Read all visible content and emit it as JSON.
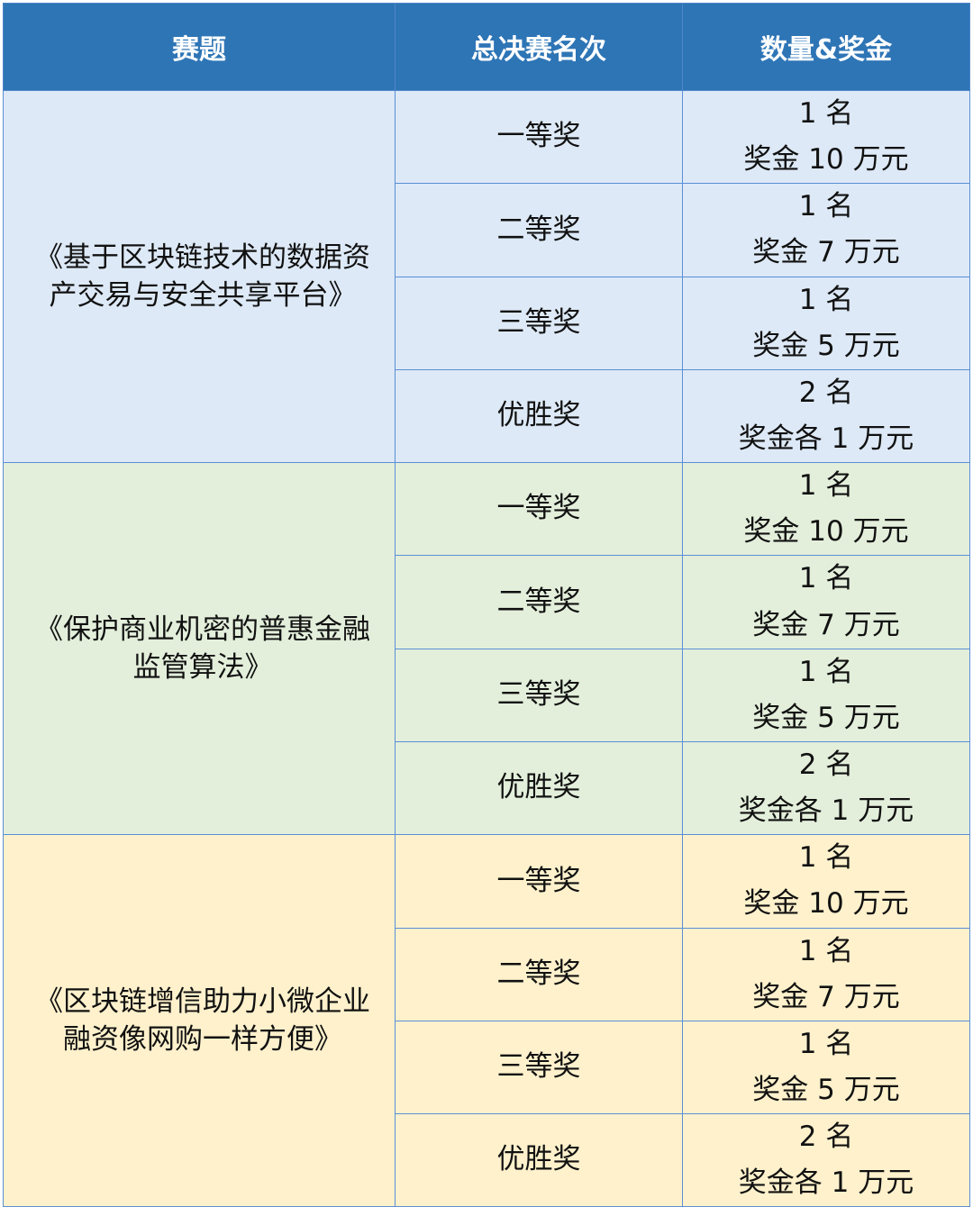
{
  "header": {
    "col_topic": "赛题",
    "col_rank": "总决赛名次",
    "col_amount": "数量&奖金"
  },
  "groups": [
    {
      "topic": "《基于区块链技术的数据资产交易与安全共享平台》",
      "bg_color": "#dde9f6",
      "prizes": [
        {
          "rank": "一等奖",
          "count": "1 名",
          "bonus": "奖金 10 万元"
        },
        {
          "rank": "二等奖",
          "count": "1 名",
          "bonus": "奖金 7 万元"
        },
        {
          "rank": "三等奖",
          "count": "1 名",
          "bonus": "奖金 5 万元"
        },
        {
          "rank": "优胜奖",
          "count": "2 名",
          "bonus": "奖金各 1 万元"
        }
      ]
    },
    {
      "topic": "《保护商业机密的普惠金融监管算法》",
      "bg_color": "#e3efdb",
      "prizes": [
        {
          "rank": "一等奖",
          "count": "1 名",
          "bonus": "奖金 10 万元"
        },
        {
          "rank": "二等奖",
          "count": "1 名",
          "bonus": "奖金 7 万元"
        },
        {
          "rank": "三等奖",
          "count": "1 名",
          "bonus": "奖金 5 万元"
        },
        {
          "rank": "优胜奖",
          "count": "2 名",
          "bonus": "奖金各 1 万元"
        }
      ]
    },
    {
      "topic": "《区块链增信助力小微企业融资像网购一样方便》",
      "bg_color": "#fef1cc",
      "prizes": [
        {
          "rank": "一等奖",
          "count": "1 名",
          "bonus": "奖金 10 万元"
        },
        {
          "rank": "二等奖",
          "count": "1 名",
          "bonus": "奖金 7 万元"
        },
        {
          "rank": "三等奖",
          "count": "1 名",
          "bonus": "奖金 5 万元"
        },
        {
          "rank": "优胜奖",
          "count": "2 名",
          "bonus": "奖金各 1 万元"
        }
      ]
    }
  ],
  "colors": {
    "header_bg": "#2e75b6",
    "header_text": "#ffffff",
    "border": "#5b8fd6"
  }
}
